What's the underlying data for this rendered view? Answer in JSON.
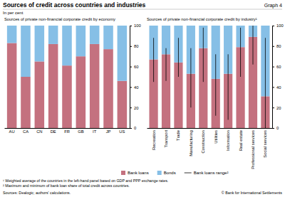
{
  "title": "Sources of credit across countries and industries",
  "subtitle": "In per cent",
  "graph_label": "Graph 4",
  "footnotes": [
    "¹ Weighted average of the countries in the left-hand panel based on GDP and PPP exchange rates.",
    "² Maximum and minimum of bank loan share of total credit across countries."
  ],
  "sources": "Sources: Dealogic; authors' calculations.",
  "copyright": "© Bank for International Settlements",
  "chart_data": [
    {
      "type": "bar",
      "stacked": true,
      "grid": false,
      "legend": "bottom",
      "title": "Sources of private non-financial corporate credit by economy",
      "categories": [
        "AU",
        "CA",
        "CN",
        "DE",
        "FR",
        "GB",
        "IT",
        "JP",
        "US"
      ],
      "series": [
        {
          "name": "Bank loans",
          "color": "#c4717f",
          "values": [
            83,
            50,
            65,
            82,
            61,
            70,
            82,
            77,
            46
          ]
        },
        {
          "name": "Bonds",
          "color": "#86bfe6",
          "values": [
            17,
            50,
            35,
            18,
            39,
            30,
            18,
            23,
            54
          ]
        }
      ],
      "ylim": [
        0,
        100
      ],
      "yticks": [
        0,
        20,
        40,
        60,
        80,
        100
      ]
    },
    {
      "type": "bar",
      "stacked": true,
      "grid": false,
      "title": "Sources of private non-financial corporate credit by industry¹",
      "categories": [
        "Recreation",
        "Transport",
        "Trade",
        "Manufacturing",
        "Construction",
        "Utilities",
        "Information",
        "Real estate",
        "Professional services",
        "Social services"
      ],
      "series": [
        {
          "color": "#c4717f",
          "values": [
            67,
            72,
            64,
            53,
            78,
            48,
            53,
            79,
            89,
            31
          ]
        },
        {
          "color": "#86bfe6",
          "values": [
            33,
            28,
            36,
            47,
            22,
            52,
            47,
            21,
            11,
            69
          ]
        }
      ],
      "bank_loans_range": {
        "name": "Bank loans range²",
        "color": "#000000",
        "min": [
          45,
          46,
          50,
          20,
          45,
          12,
          8,
          50,
          62,
          0
        ],
        "max": [
          88,
          78,
          88,
          78,
          98,
          72,
          72,
          98,
          100,
          88
        ]
      },
      "ylim": [
        0,
        100
      ],
      "yticks": [
        0,
        20,
        40,
        60,
        80,
        100
      ]
    }
  ]
}
